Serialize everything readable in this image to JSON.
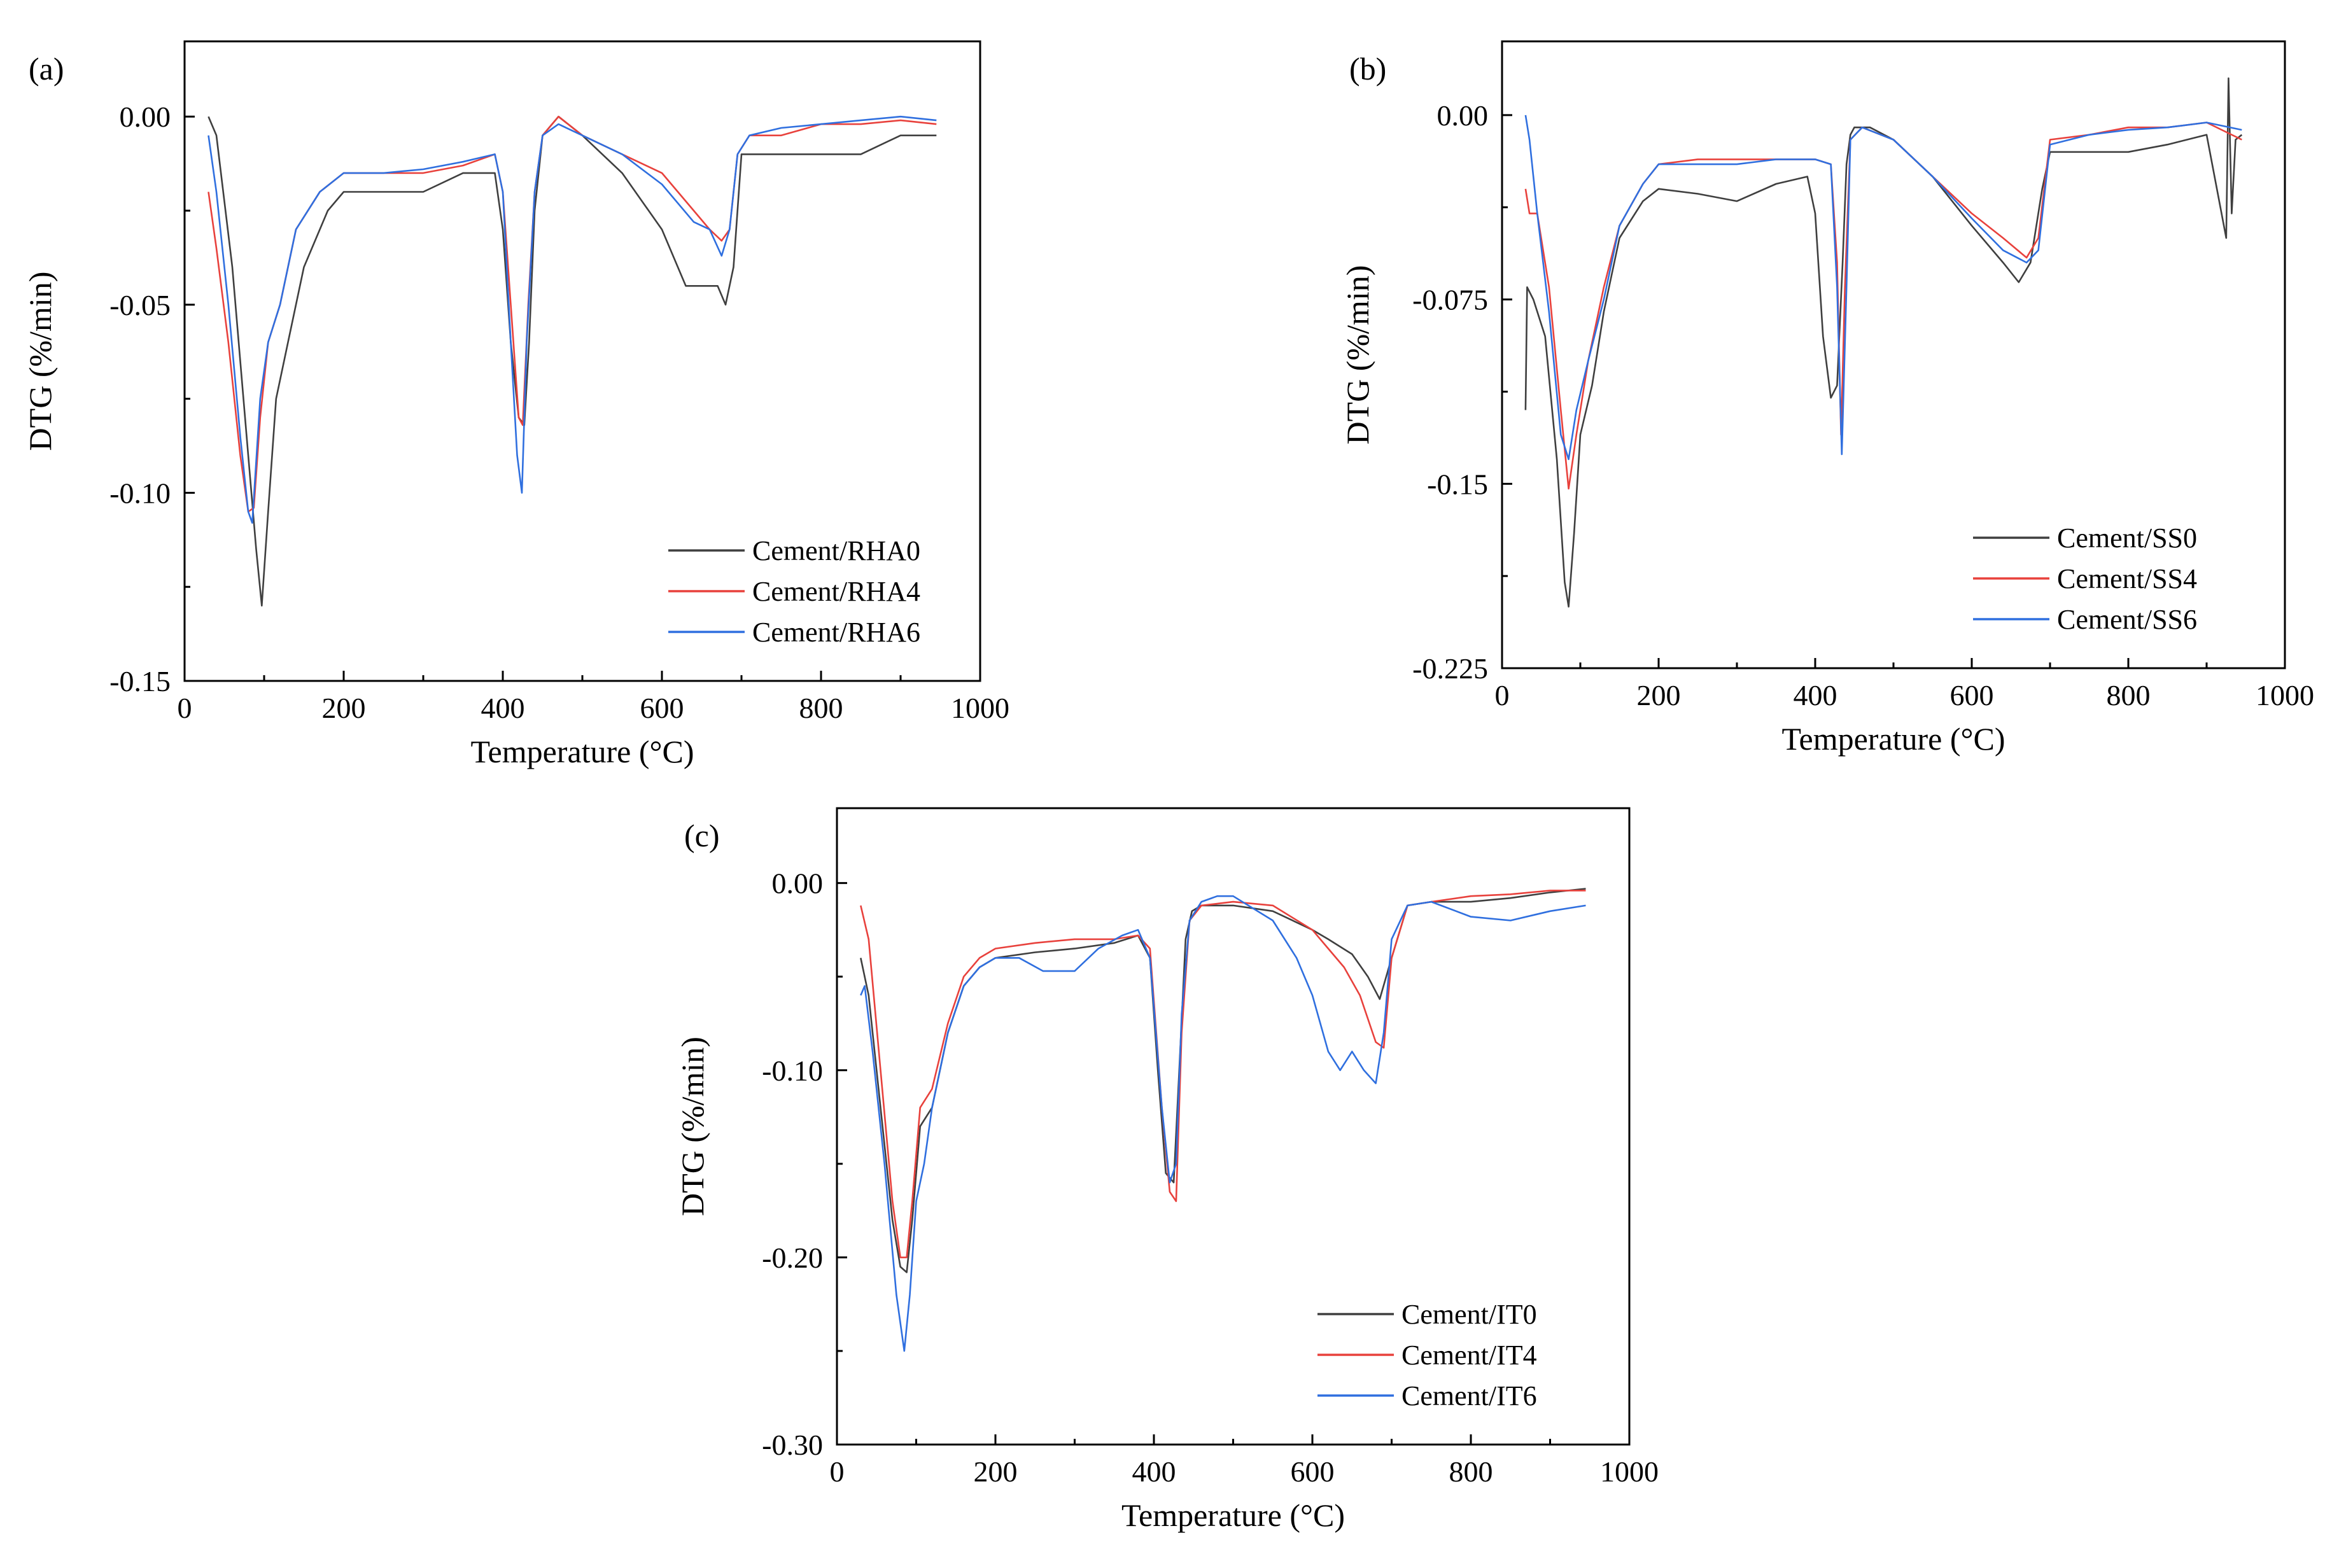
{
  "colors": {
    "series_0": "#3f3f3f",
    "series_4": "#e8413c",
    "series_6": "#2f6fdf"
  },
  "chart_data": [
    {
      "type": "line",
      "panel_label": "(a)",
      "xlabel": "Temperature (°C)",
      "ylabel": "DTG  (%/min)",
      "xlim": [
        0,
        1000
      ],
      "ylim": [
        -0.15,
        0.02
      ],
      "xticks": [
        0,
        200,
        400,
        600,
        800,
        1000
      ],
      "xtick_labels": [
        "0",
        "200",
        "400",
        "600",
        "800",
        "1000"
      ],
      "yticks": [
        0.0,
        -0.05,
        -0.1,
        -0.15
      ],
      "ytick_labels": [
        "0.00",
        "-0.05",
        "-0.10",
        "-0.15"
      ],
      "legend_position": "bottom-right",
      "series": [
        {
          "name": "Cement/RHA0",
          "x": [
            30,
            40,
            60,
            80,
            90,
            97,
            105,
            115,
            130,
            150,
            180,
            200,
            250,
            300,
            350,
            390,
            400,
            410,
            420,
            427,
            433,
            440,
            450,
            470,
            500,
            550,
            600,
            630,
            650,
            670,
            680,
            690,
            700,
            750,
            800,
            850,
            900,
            945
          ],
          "y": [
            0.0,
            -0.005,
            -0.04,
            -0.09,
            -0.115,
            -0.13,
            -0.105,
            -0.075,
            -0.06,
            -0.04,
            -0.025,
            -0.02,
            -0.02,
            -0.02,
            -0.015,
            -0.015,
            -0.03,
            -0.06,
            -0.08,
            -0.082,
            -0.06,
            -0.025,
            -0.005,
            0.0,
            -0.005,
            -0.015,
            -0.03,
            -0.045,
            -0.045,
            -0.045,
            -0.05,
            -0.04,
            -0.01,
            -0.01,
            -0.01,
            -0.01,
            -0.005,
            -0.005
          ]
        },
        {
          "name": "Cement/RHA4",
          "x": [
            30,
            40,
            55,
            70,
            80,
            87,
            95,
            105,
            120,
            140,
            170,
            200,
            250,
            300,
            350,
            390,
            400,
            410,
            420,
            425,
            432,
            440,
            450,
            470,
            500,
            550,
            600,
            640,
            660,
            675,
            685,
            695,
            710,
            750,
            800,
            850,
            900,
            945
          ],
          "y": [
            -0.02,
            -0.035,
            -0.06,
            -0.09,
            -0.105,
            -0.104,
            -0.08,
            -0.06,
            -0.05,
            -0.03,
            -0.02,
            -0.015,
            -0.015,
            -0.015,
            -0.013,
            -0.01,
            -0.02,
            -0.05,
            -0.08,
            -0.082,
            -0.05,
            -0.02,
            -0.005,
            0.0,
            -0.005,
            -0.01,
            -0.015,
            -0.025,
            -0.03,
            -0.033,
            -0.03,
            -0.01,
            -0.005,
            -0.005,
            -0.002,
            -0.002,
            -0.001,
            -0.002
          ]
        },
        {
          "name": "Cement/RHA6",
          "x": [
            30,
            40,
            55,
            70,
            80,
            85,
            95,
            105,
            120,
            140,
            170,
            200,
            250,
            300,
            350,
            390,
            400,
            410,
            418,
            424,
            430,
            440,
            450,
            470,
            500,
            550,
            600,
            640,
            660,
            675,
            685,
            695,
            710,
            750,
            800,
            850,
            900,
            945
          ],
          "y": [
            -0.005,
            -0.02,
            -0.05,
            -0.085,
            -0.105,
            -0.108,
            -0.075,
            -0.06,
            -0.05,
            -0.03,
            -0.02,
            -0.015,
            -0.015,
            -0.014,
            -0.012,
            -0.01,
            -0.02,
            -0.06,
            -0.09,
            -0.1,
            -0.06,
            -0.02,
            -0.005,
            -0.002,
            -0.005,
            -0.01,
            -0.018,
            -0.028,
            -0.03,
            -0.037,
            -0.03,
            -0.01,
            -0.005,
            -0.003,
            -0.002,
            -0.001,
            0.0,
            -0.001
          ]
        }
      ]
    },
    {
      "type": "line",
      "panel_label": "(b)",
      "xlabel": "Temperature (°C)",
      "ylabel": "DTG  (%/min)",
      "xlim": [
        0,
        1000
      ],
      "ylim": [
        -0.225,
        0.03
      ],
      "xticks": [
        0,
        200,
        400,
        600,
        800,
        1000
      ],
      "xtick_labels": [
        "0",
        "200",
        "400",
        "600",
        "800",
        "1000"
      ],
      "yticks": [
        0.0,
        -0.075,
        -0.15,
        -0.225
      ],
      "ytick_labels": [
        "0.00",
        "-0.075",
        "-0.15",
        "-0.225"
      ],
      "legend_position": "bottom-right",
      "series": [
        {
          "name": "Cement/SS0",
          "x": [
            30,
            32,
            40,
            55,
            70,
            80,
            85,
            92,
            100,
            115,
            130,
            150,
            180,
            200,
            250,
            300,
            350,
            390,
            400,
            410,
            420,
            428,
            435,
            440,
            445,
            450,
            470,
            500,
            550,
            600,
            640,
            660,
            675,
            690,
            700,
            750,
            800,
            850,
            900,
            925,
            928,
            932,
            937,
            945
          ],
          "y": [
            -0.12,
            -0.07,
            -0.075,
            -0.09,
            -0.14,
            -0.19,
            -0.2,
            -0.17,
            -0.13,
            -0.11,
            -0.08,
            -0.05,
            -0.035,
            -0.03,
            -0.032,
            -0.035,
            -0.028,
            -0.025,
            -0.04,
            -0.09,
            -0.115,
            -0.11,
            -0.06,
            -0.02,
            -0.008,
            -0.005,
            -0.005,
            -0.01,
            -0.025,
            -0.045,
            -0.06,
            -0.068,
            -0.06,
            -0.03,
            -0.015,
            -0.015,
            -0.015,
            -0.012,
            -0.008,
            -0.05,
            0.015,
            -0.04,
            -0.01,
            -0.008
          ]
        },
        {
          "name": "Cement/SS4",
          "x": [
            30,
            35,
            45,
            60,
            75,
            85,
            95,
            110,
            130,
            150,
            180,
            200,
            250,
            300,
            350,
            400,
            420,
            428,
            433,
            438,
            445,
            460,
            500,
            550,
            600,
            640,
            670,
            685,
            700,
            750,
            800,
            850,
            900,
            945
          ],
          "y": [
            -0.03,
            -0.04,
            -0.04,
            -0.07,
            -0.12,
            -0.152,
            -0.13,
            -0.1,
            -0.07,
            -0.045,
            -0.028,
            -0.02,
            -0.018,
            -0.018,
            -0.018,
            -0.018,
            -0.02,
            -0.06,
            -0.13,
            -0.07,
            -0.01,
            -0.005,
            -0.01,
            -0.025,
            -0.04,
            -0.05,
            -0.058,
            -0.05,
            -0.01,
            -0.008,
            -0.005,
            -0.005,
            -0.003,
            -0.01
          ]
        },
        {
          "name": "Cement/SS6",
          "x": [
            30,
            35,
            45,
            60,
            75,
            85,
            95,
            110,
            130,
            150,
            180,
            200,
            250,
            300,
            350,
            400,
            420,
            428,
            434,
            440,
            445,
            460,
            500,
            550,
            600,
            640,
            670,
            685,
            700,
            750,
            800,
            850,
            900,
            945
          ],
          "y": [
            0.0,
            -0.01,
            -0.04,
            -0.08,
            -0.13,
            -0.14,
            -0.12,
            -0.1,
            -0.075,
            -0.045,
            -0.028,
            -0.02,
            -0.02,
            -0.02,
            -0.018,
            -0.018,
            -0.02,
            -0.07,
            -0.138,
            -0.07,
            -0.01,
            -0.005,
            -0.01,
            -0.025,
            -0.042,
            -0.055,
            -0.06,
            -0.055,
            -0.012,
            -0.008,
            -0.006,
            -0.005,
            -0.003,
            -0.006
          ]
        }
      ]
    },
    {
      "type": "line",
      "panel_label": "(c)",
      "xlabel": "Temperature (°C)",
      "ylabel": "DTG  (%/min)",
      "xlim": [
        0,
        1000
      ],
      "ylim": [
        -0.3,
        0.04
      ],
      "xticks": [
        0,
        200,
        400,
        600,
        800,
        1000
      ],
      "xtick_labels": [
        "0",
        "200",
        "400",
        "600",
        "800",
        "1000"
      ],
      "yticks": [
        0.0,
        -0.1,
        -0.2,
        -0.3
      ],
      "ytick_labels": [
        "0.00",
        "-0.10",
        "-0.20",
        "-0.30"
      ],
      "legend_position": "bottom-right",
      "series": [
        {
          "name": "Cement/IT0",
          "x": [
            30,
            40,
            55,
            70,
            80,
            88,
            95,
            105,
            120,
            140,
            160,
            180,
            200,
            250,
            300,
            350,
            380,
            395,
            405,
            415,
            425,
            432,
            440,
            448,
            460,
            500,
            550,
            600,
            620,
            650,
            670,
            685,
            700,
            720,
            750,
            800,
            850,
            900,
            945
          ],
          "y": [
            -0.04,
            -0.06,
            -0.12,
            -0.18,
            -0.205,
            -0.208,
            -0.18,
            -0.13,
            -0.12,
            -0.08,
            -0.055,
            -0.045,
            -0.04,
            -0.037,
            -0.035,
            -0.032,
            -0.028,
            -0.04,
            -0.1,
            -0.155,
            -0.16,
            -0.1,
            -0.03,
            -0.015,
            -0.012,
            -0.012,
            -0.015,
            -0.025,
            -0.03,
            -0.038,
            -0.05,
            -0.062,
            -0.04,
            -0.012,
            -0.01,
            -0.01,
            -0.008,
            -0.005,
            -0.003
          ]
        },
        {
          "name": "Cement/IT4",
          "x": [
            30,
            40,
            55,
            70,
            80,
            88,
            95,
            105,
            120,
            140,
            160,
            180,
            200,
            250,
            300,
            350,
            380,
            395,
            410,
            420,
            428,
            435,
            445,
            460,
            500,
            550,
            600,
            620,
            640,
            660,
            680,
            690,
            700,
            720,
            750,
            800,
            850,
            900,
            945
          ],
          "y": [
            -0.012,
            -0.03,
            -0.1,
            -0.17,
            -0.2,
            -0.2,
            -0.17,
            -0.12,
            -0.11,
            -0.075,
            -0.05,
            -0.04,
            -0.035,
            -0.032,
            -0.03,
            -0.03,
            -0.028,
            -0.035,
            -0.12,
            -0.165,
            -0.17,
            -0.08,
            -0.02,
            -0.012,
            -0.01,
            -0.012,
            -0.025,
            -0.035,
            -0.045,
            -0.06,
            -0.085,
            -0.088,
            -0.04,
            -0.012,
            -0.01,
            -0.007,
            -0.006,
            -0.004,
            -0.004
          ]
        },
        {
          "name": "Cement/IT6",
          "x": [
            30,
            35,
            45,
            60,
            75,
            85,
            92,
            100,
            110,
            120,
            140,
            160,
            180,
            200,
            230,
            260,
            300,
            330,
            360,
            380,
            395,
            410,
            420,
            428,
            435,
            445,
            460,
            480,
            500,
            550,
            580,
            600,
            620,
            635,
            650,
            665,
            680,
            690,
            700,
            720,
            750,
            800,
            850,
            900,
            945
          ],
          "y": [
            -0.06,
            -0.055,
            -0.09,
            -0.15,
            -0.22,
            -0.25,
            -0.22,
            -0.17,
            -0.15,
            -0.12,
            -0.08,
            -0.055,
            -0.045,
            -0.04,
            -0.04,
            -0.047,
            -0.047,
            -0.035,
            -0.028,
            -0.025,
            -0.04,
            -0.12,
            -0.16,
            -0.15,
            -0.07,
            -0.02,
            -0.01,
            -0.007,
            -0.007,
            -0.02,
            -0.04,
            -0.06,
            -0.09,
            -0.1,
            -0.09,
            -0.1,
            -0.107,
            -0.08,
            -0.03,
            -0.012,
            -0.01,
            -0.018,
            -0.02,
            -0.015,
            -0.012
          ]
        }
      ]
    }
  ]
}
